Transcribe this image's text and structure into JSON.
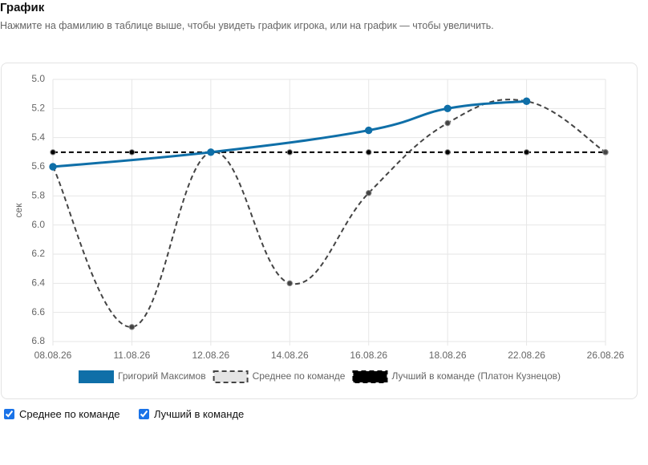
{
  "header": {
    "title": "График",
    "hint": "Нажмите на фамилию в таблице выше, чтобы увидеть график игрока, или на график — чтобы увеличить."
  },
  "chart_data": {
    "type": "line",
    "y_label": "сек",
    "categories": [
      "08.08.26",
      "11.08.26",
      "12.08.26",
      "14.08.26",
      "16.08.26",
      "18.08.26",
      "22.08.26",
      "26.08.26"
    ],
    "ylim": [
      5.0,
      6.8
    ],
    "y_inverted": true,
    "yticks": [
      {
        "value": 5.0,
        "label": "5.0"
      },
      5.2,
      5.4,
      5.6,
      5.8,
      {
        "value": 6.0,
        "label": "6.0"
      },
      6.2,
      6.4,
      6.6,
      6.8
    ],
    "grid": true,
    "span_gaps": true,
    "smooth": true,
    "legend": "bottom",
    "series": [
      {
        "name": "Григорий Максимов",
        "color": "#0f6fa8",
        "dashed": false,
        "values": [
          5.6,
          null,
          5.5,
          null,
          5.35,
          5.2,
          5.15,
          null
        ]
      },
      {
        "name": "Среднее по команде",
        "color": "#444444",
        "dashed": true,
        "values": [
          5.6,
          6.7,
          5.5,
          6.4,
          5.78,
          5.3,
          5.15,
          5.5
        ]
      },
      {
        "name": "Лучший в команде (Платон Кузнецов)",
        "color": "#000000",
        "dashed": true,
        "values": [
          5.5,
          5.5,
          5.5,
          5.5,
          5.5,
          5.5,
          5.5,
          5.5
        ]
      }
    ]
  },
  "controls": [
    {
      "label": "Среднее по команде",
      "checked": true
    },
    {
      "label": "Лучший в команде",
      "checked": true
    }
  ]
}
